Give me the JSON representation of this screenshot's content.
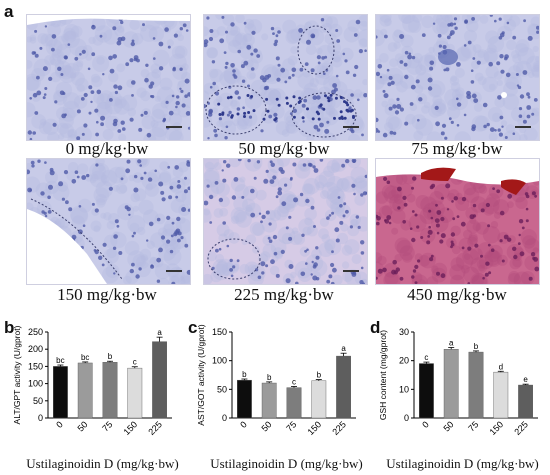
{
  "figure_label": "a",
  "micrographs": [
    {
      "label": "0 mg/kg·bw",
      "stain": "light"
    },
    {
      "label": "50 mg/kg·bw",
      "stain": "light"
    },
    {
      "label": "75 mg/kg·bw",
      "stain": "light"
    },
    {
      "label": "150 mg/kg·bw",
      "stain": "light"
    },
    {
      "label": "225 mg/kg·bw",
      "stain": "light"
    },
    {
      "label": "450 mg/kg·bw",
      "stain": "dark"
    }
  ],
  "chart_data": [
    {
      "panel": "b",
      "type": "bar",
      "categories": [
        "0",
        "50",
        "75",
        "150",
        "225"
      ],
      "values": [
        150,
        160,
        162,
        145,
        222
      ],
      "errors": [
        4,
        3,
        3,
        4,
        13
      ],
      "letters": [
        "bc",
        "bc",
        "b",
        "c",
        "a"
      ],
      "colors": [
        "#0d0d0d",
        "#9b9b9b",
        "#7d7d7d",
        "#dcdcdc",
        "#5e5e5e"
      ],
      "ylabel": "ALT/GPT activity (U/gprot)",
      "xlabel": "Ustilaginoidin D (mg/kg·bw)",
      "ylim": [
        0,
        250
      ],
      "yticks": [
        0,
        50,
        100,
        150,
        200,
        250
      ]
    },
    {
      "panel": "c",
      "type": "bar",
      "categories": [
        "0",
        "50",
        "75",
        "150",
        "225"
      ],
      "values": [
        66,
        61,
        53,
        65,
        108
      ],
      "errors": [
        2,
        2,
        2,
        2,
        5
      ],
      "letters": [
        "b",
        "b",
        "c",
        "b",
        "a"
      ],
      "colors": [
        "#0d0d0d",
        "#9b9b9b",
        "#7d7d7d",
        "#dcdcdc",
        "#5e5e5e"
      ],
      "ylabel": "AST/GOT activity (U/gprot)",
      "xlabel": "Ustilaginoidin D (mg/kg·bw)",
      "ylim": [
        0,
        150
      ],
      "yticks": [
        0,
        50,
        100,
        150
      ]
    },
    {
      "panel": "d",
      "type": "bar",
      "categories": [
        "0",
        "50",
        "75",
        "150",
        "225"
      ],
      "values": [
        19,
        24,
        23,
        16,
        11.5
      ],
      "errors": [
        0.5,
        0.6,
        0.4,
        0.3,
        0.3
      ],
      "letters": [
        "c",
        "a",
        "b",
        "d",
        "e"
      ],
      "colors": [
        "#0d0d0d",
        "#9b9b9b",
        "#7d7d7d",
        "#dcdcdc",
        "#5e5e5e"
      ],
      "ylabel": "GSH content (mg/gprot)",
      "xlabel": "Ustilaginoidin D (mg/kg·bw)",
      "ylim": [
        0,
        30
      ],
      "yticks": [
        0,
        10,
        20,
        30
      ]
    }
  ]
}
